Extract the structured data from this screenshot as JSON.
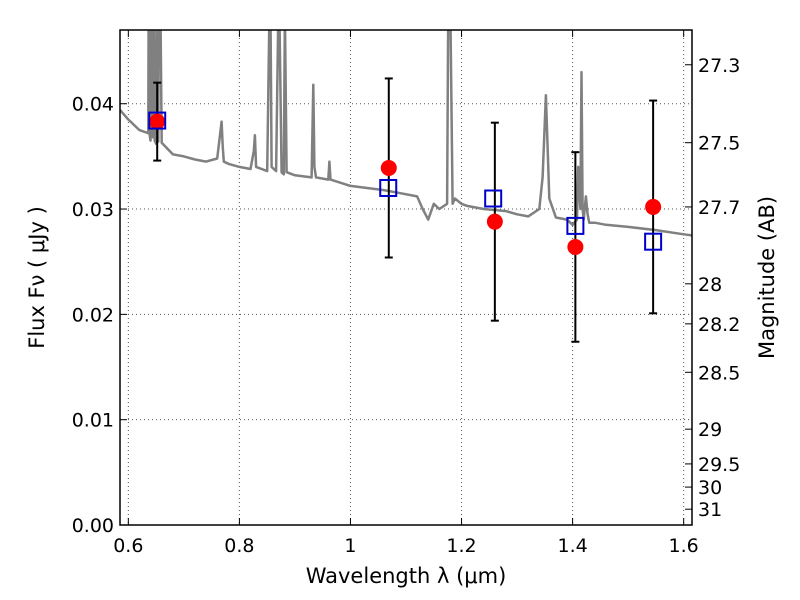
{
  "chart_data": {
    "type": "scatter",
    "xlabel": "Wavelength  λ (μm)",
    "ylabel": "Flux  Fν ( μJy )",
    "ylabel_right": "Magnitude (AB)",
    "xlim": [
      0.585,
      1.615
    ],
    "ylim": [
      0.0,
      0.047
    ],
    "grid": true,
    "x_ticks": [
      0.6,
      0.8,
      1.0,
      1.2,
      1.4,
      1.6
    ],
    "x_tick_labels": [
      "0.6",
      "0.8",
      "1",
      "1.2",
      "1.4",
      "1.6"
    ],
    "y_ticks": [
      0.0,
      0.01,
      0.02,
      0.03,
      0.04
    ],
    "y_tick_labels": [
      "0.00",
      "0.01",
      "0.02",
      "0.03",
      "0.04"
    ],
    "right_ticks": [
      {
        "label": "27.3",
        "flux": 0.0437
      },
      {
        "label": "27.5",
        "flux": 0.0363
      },
      {
        "label": "27.7",
        "flux": 0.0302
      },
      {
        "label": "28",
        "flux": 0.0229
      },
      {
        "label": "28.2",
        "flux": 0.0191
      },
      {
        "label": "28.5",
        "flux": 0.0145
      },
      {
        "label": "29",
        "flux": 0.0091
      },
      {
        "label": "29.5",
        "flux": 0.0058
      },
      {
        "label": "30",
        "flux": 0.0036
      },
      {
        "label": "31",
        "flux": 0.0015
      }
    ],
    "observed": {
      "color": "#ff0000",
      "points": [
        {
          "x": 0.652,
          "y": 0.0383,
          "err": 0.0037
        },
        {
          "x": 1.069,
          "y": 0.0339,
          "err": 0.0085
        },
        {
          "x": 1.26,
          "y": 0.0288,
          "err": 0.0094
        },
        {
          "x": 1.405,
          "y": 0.0264,
          "err": 0.009
        },
        {
          "x": 1.545,
          "y": 0.0302,
          "err": 0.0101
        }
      ]
    },
    "model": {
      "color": "#0000cc",
      "points": [
        {
          "x": 0.652,
          "y": 0.0384
        },
        {
          "x": 1.068,
          "y": 0.032
        },
        {
          "x": 1.257,
          "y": 0.031
        },
        {
          "x": 1.405,
          "y": 0.0284
        },
        {
          "x": 1.545,
          "y": 0.0269
        }
      ]
    },
    "spectrum": {
      "color": "#808080",
      "x": [
        0.585,
        0.6,
        0.62,
        0.636,
        0.6365,
        0.638,
        0.6385,
        0.64,
        0.642,
        0.6425,
        0.644,
        0.6445,
        0.647,
        0.6475,
        0.65,
        0.652,
        0.6525,
        0.654,
        0.6545,
        0.658,
        0.66,
        0.68,
        0.7,
        0.72,
        0.74,
        0.76,
        0.768,
        0.77,
        0.772,
        0.78,
        0.8,
        0.82,
        0.826,
        0.828,
        0.83,
        0.85,
        0.854,
        0.856,
        0.858,
        0.866,
        0.87,
        0.872,
        0.876,
        0.88,
        0.882,
        0.885,
        0.9,
        0.93,
        0.933,
        0.935,
        0.938,
        0.96,
        0.962,
        0.964,
        1.0,
        1.03,
        1.06,
        1.09,
        1.12,
        1.13,
        1.14,
        1.15,
        1.16,
        1.174,
        1.176,
        1.18,
        1.184,
        1.188,
        1.2,
        1.21,
        1.24,
        1.28,
        1.3,
        1.32,
        1.34,
        1.346,
        1.352,
        1.358,
        1.37,
        1.39,
        1.4,
        1.408,
        1.41,
        1.414,
        1.416,
        1.418,
        1.42,
        1.424,
        1.427,
        1.43,
        1.44,
        1.46,
        1.5,
        1.55,
        1.6,
        1.615
      ],
      "y": [
        0.0394,
        0.0385,
        0.0375,
        0.0372,
        0.0485,
        0.0485,
        0.037,
        0.0365,
        0.0485,
        0.0485,
        0.0368,
        0.0485,
        0.0485,
        0.0365,
        0.0362,
        0.0485,
        0.0485,
        0.0364,
        0.0485,
        0.0485,
        0.0363,
        0.0352,
        0.035,
        0.0347,
        0.0345,
        0.0348,
        0.0383,
        0.036,
        0.0345,
        0.0343,
        0.034,
        0.0338,
        0.0355,
        0.037,
        0.034,
        0.0336,
        0.0485,
        0.0485,
        0.034,
        0.0336,
        0.0485,
        0.0485,
        0.0335,
        0.0333,
        0.0485,
        0.0335,
        0.0332,
        0.033,
        0.0418,
        0.034,
        0.033,
        0.0328,
        0.0345,
        0.0328,
        0.0322,
        0.032,
        0.0318,
        0.0315,
        0.0312,
        0.03,
        0.029,
        0.0305,
        0.03,
        0.0305,
        0.0485,
        0.0485,
        0.0305,
        0.031,
        0.0305,
        0.0303,
        0.03,
        0.0298,
        0.0295,
        0.0293,
        0.03,
        0.033,
        0.0408,
        0.031,
        0.0292,
        0.029,
        0.0285,
        0.029,
        0.034,
        0.03,
        0.043,
        0.03,
        0.029,
        0.0312,
        0.0295,
        0.0287,
        0.0287,
        0.0285,
        0.0283,
        0.028,
        0.0276,
        0.0275
      ]
    }
  }
}
